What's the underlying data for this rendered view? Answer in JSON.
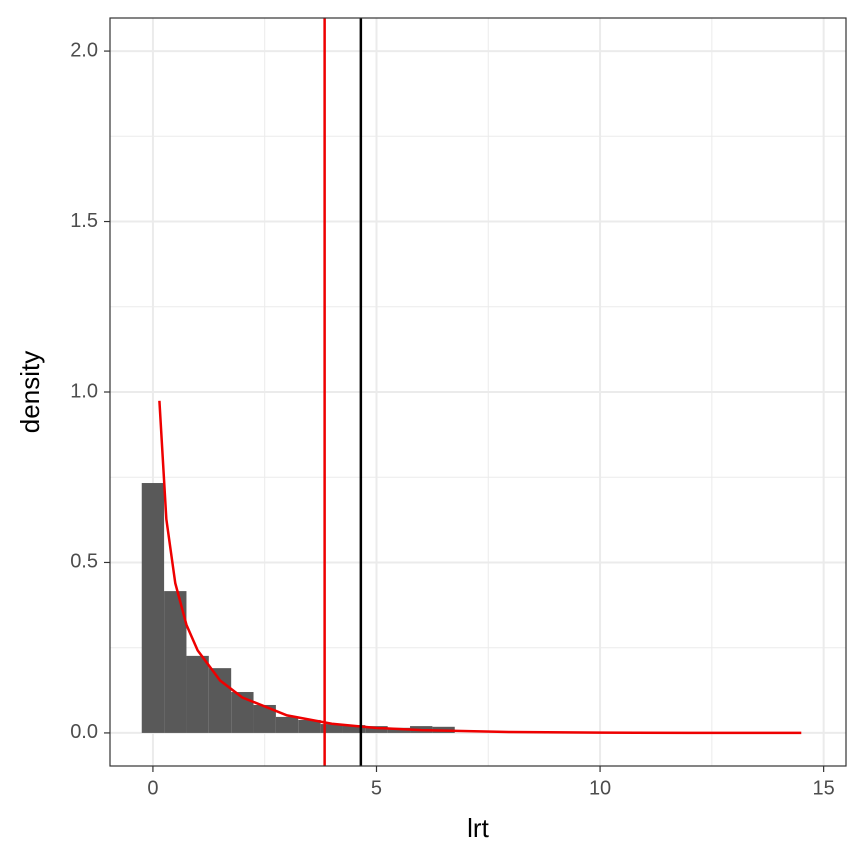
{
  "chart_data": {
    "type": "histogram",
    "x_label": "lrt",
    "y_label": "density",
    "bins": [
      -0.25,
      0.25,
      0.75,
      1.25,
      1.75,
      2.25,
      2.75,
      3.25,
      3.75,
      4.25,
      4.75,
      5.25,
      5.75,
      6.25,
      6.75
    ],
    "values": [
      0.733,
      0.416,
      0.226,
      0.19,
      0.12,
      0.082,
      0.047,
      0.038,
      0.026,
      0.023,
      0.02,
      0.015,
      0.02,
      0.018
    ],
    "color": "#595959",
    "curve": {
      "color": "#ee0000",
      "x": [
        0.145,
        0.3,
        0.5,
        0.75,
        1,
        1.5,
        2,
        3,
        4,
        5,
        6,
        8,
        10,
        12,
        14.5
      ],
      "values": [
        0.974,
        0.627,
        0.439,
        0.317,
        0.242,
        0.154,
        0.104,
        0.0514,
        0.027,
        0.0146,
        0.0081,
        0.0026,
        0.00085,
        0.00029,
        7e-05
      ]
    },
    "vlines": [
      {
        "value": 3.84,
        "color": "#ee0000"
      },
      {
        "value": 4.65,
        "color": "#000000"
      }
    ],
    "xlim": [
      -0.96,
      15.5
    ],
    "ylim": [
      -0.097,
      2.097
    ],
    "xticks": [
      0,
      5,
      10,
      15
    ],
    "yticks": [
      {
        "value": 0,
        "label": "0.0"
      },
      {
        "value": 0.5,
        "label": "0.5"
      },
      {
        "value": 1,
        "label": "1.0"
      },
      {
        "value": 1.5,
        "label": "1.5"
      },
      {
        "value": 2,
        "label": "2.0"
      }
    ],
    "x_minor_grid": [
      2.5,
      7.5,
      12.5
    ],
    "y_minor_grid": [
      0.25,
      0.75,
      1.25,
      1.75
    ],
    "grid": true
  }
}
